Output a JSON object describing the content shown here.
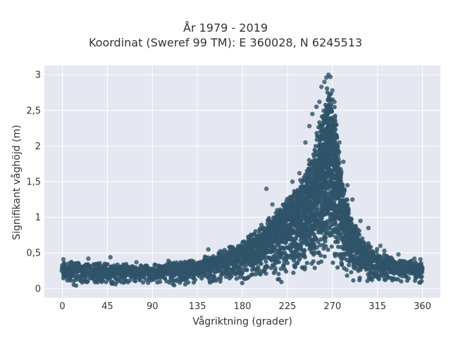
{
  "chart_data": {
    "type": "scatter",
    "title_lines": [
      "År 1979 - 2019",
      "Koordinat (Sweref 99 TM): E 360028, N 6245513"
    ],
    "xlabel": "Vågriktning (grader)",
    "ylabel": "Signifikant våghöjd (m)",
    "xlim": [
      -18,
      378
    ],
    "ylim": [
      -0.13,
      3.13
    ],
    "x_ticks": [
      0,
      45,
      90,
      135,
      180,
      225,
      270,
      315,
      360
    ],
    "x_tick_labels": [
      "0",
      "45",
      "90",
      "135",
      "180",
      "225",
      "270",
      "315",
      "360"
    ],
    "y_ticks": [
      0,
      0.5,
      1,
      1.5,
      2,
      2.5,
      3
    ],
    "y_tick_labels": [
      "0",
      "0,5",
      "1",
      "1,5",
      "2",
      "2,5",
      "3"
    ],
    "grid": true,
    "background": "#e5e8f0",
    "marker_color": "#2f5369",
    "envelope": [
      {
        "x": 0,
        "y_max": 0.38
      },
      {
        "x": 45,
        "y_max": 0.36
      },
      {
        "x": 90,
        "y_max": 0.34
      },
      {
        "x": 135,
        "y_max": 0.42
      },
      {
        "x": 160,
        "y_max": 0.55
      },
      {
        "x": 180,
        "y_max": 0.68
      },
      {
        "x": 200,
        "y_max": 0.92
      },
      {
        "x": 225,
        "y_max": 1.3
      },
      {
        "x": 240,
        "y_max": 1.6
      },
      {
        "x": 250,
        "y_max": 1.95
      },
      {
        "x": 260,
        "y_max": 2.55
      },
      {
        "x": 266,
        "y_max": 3.0
      },
      {
        "x": 272,
        "y_max": 2.6
      },
      {
        "x": 280,
        "y_max": 1.6
      },
      {
        "x": 290,
        "y_max": 1.0
      },
      {
        "x": 305,
        "y_max": 0.68
      },
      {
        "x": 320,
        "y_max": 0.5
      },
      {
        "x": 340,
        "y_max": 0.42
      },
      {
        "x": 360,
        "y_max": 0.38
      }
    ],
    "outliers": [
      {
        "x": 1,
        "y": 0.41
      },
      {
        "x": 26,
        "y": 0.42
      },
      {
        "x": 48,
        "y": 0.44
      },
      {
        "x": 74,
        "y": 0.37
      },
      {
        "x": 106,
        "y": 0.39
      },
      {
        "x": 146,
        "y": 0.55
      },
      {
        "x": 204,
        "y": 1.4
      },
      {
        "x": 210,
        "y": 1.18
      },
      {
        "x": 217,
        "y": 1.05
      },
      {
        "x": 224,
        "y": 1.22
      },
      {
        "x": 230,
        "y": 1.5
      },
      {
        "x": 237,
        "y": 1.62
      },
      {
        "x": 243,
        "y": 2.05
      },
      {
        "x": 247,
        "y": 2.28
      },
      {
        "x": 250,
        "y": 2.45
      },
      {
        "x": 254,
        "y": 2.55
      },
      {
        "x": 257,
        "y": 2.62
      },
      {
        "x": 259,
        "y": 2.83
      },
      {
        "x": 262,
        "y": 2.9
      },
      {
        "x": 264,
        "y": 2.96
      },
      {
        "x": 266,
        "y": 3.0
      },
      {
        "x": 268,
        "y": 2.97
      },
      {
        "x": 270,
        "y": 2.78
      },
      {
        "x": 272,
        "y": 2.62
      },
      {
        "x": 274,
        "y": 2.3
      },
      {
        "x": 277,
        "y": 2.05
      },
      {
        "x": 281,
        "y": 1.78
      },
      {
        "x": 285,
        "y": 1.45
      },
      {
        "x": 290,
        "y": 1.25
      },
      {
        "x": 298,
        "y": 0.95
      },
      {
        "x": 306,
        "y": 0.85
      },
      {
        "x": 318,
        "y": 0.6
      },
      {
        "x": 322,
        "y": 0.53
      },
      {
        "x": 336,
        "y": 0.48
      },
      {
        "x": 352,
        "y": 0.42
      },
      {
        "x": 358,
        "y": 0.41
      }
    ]
  }
}
